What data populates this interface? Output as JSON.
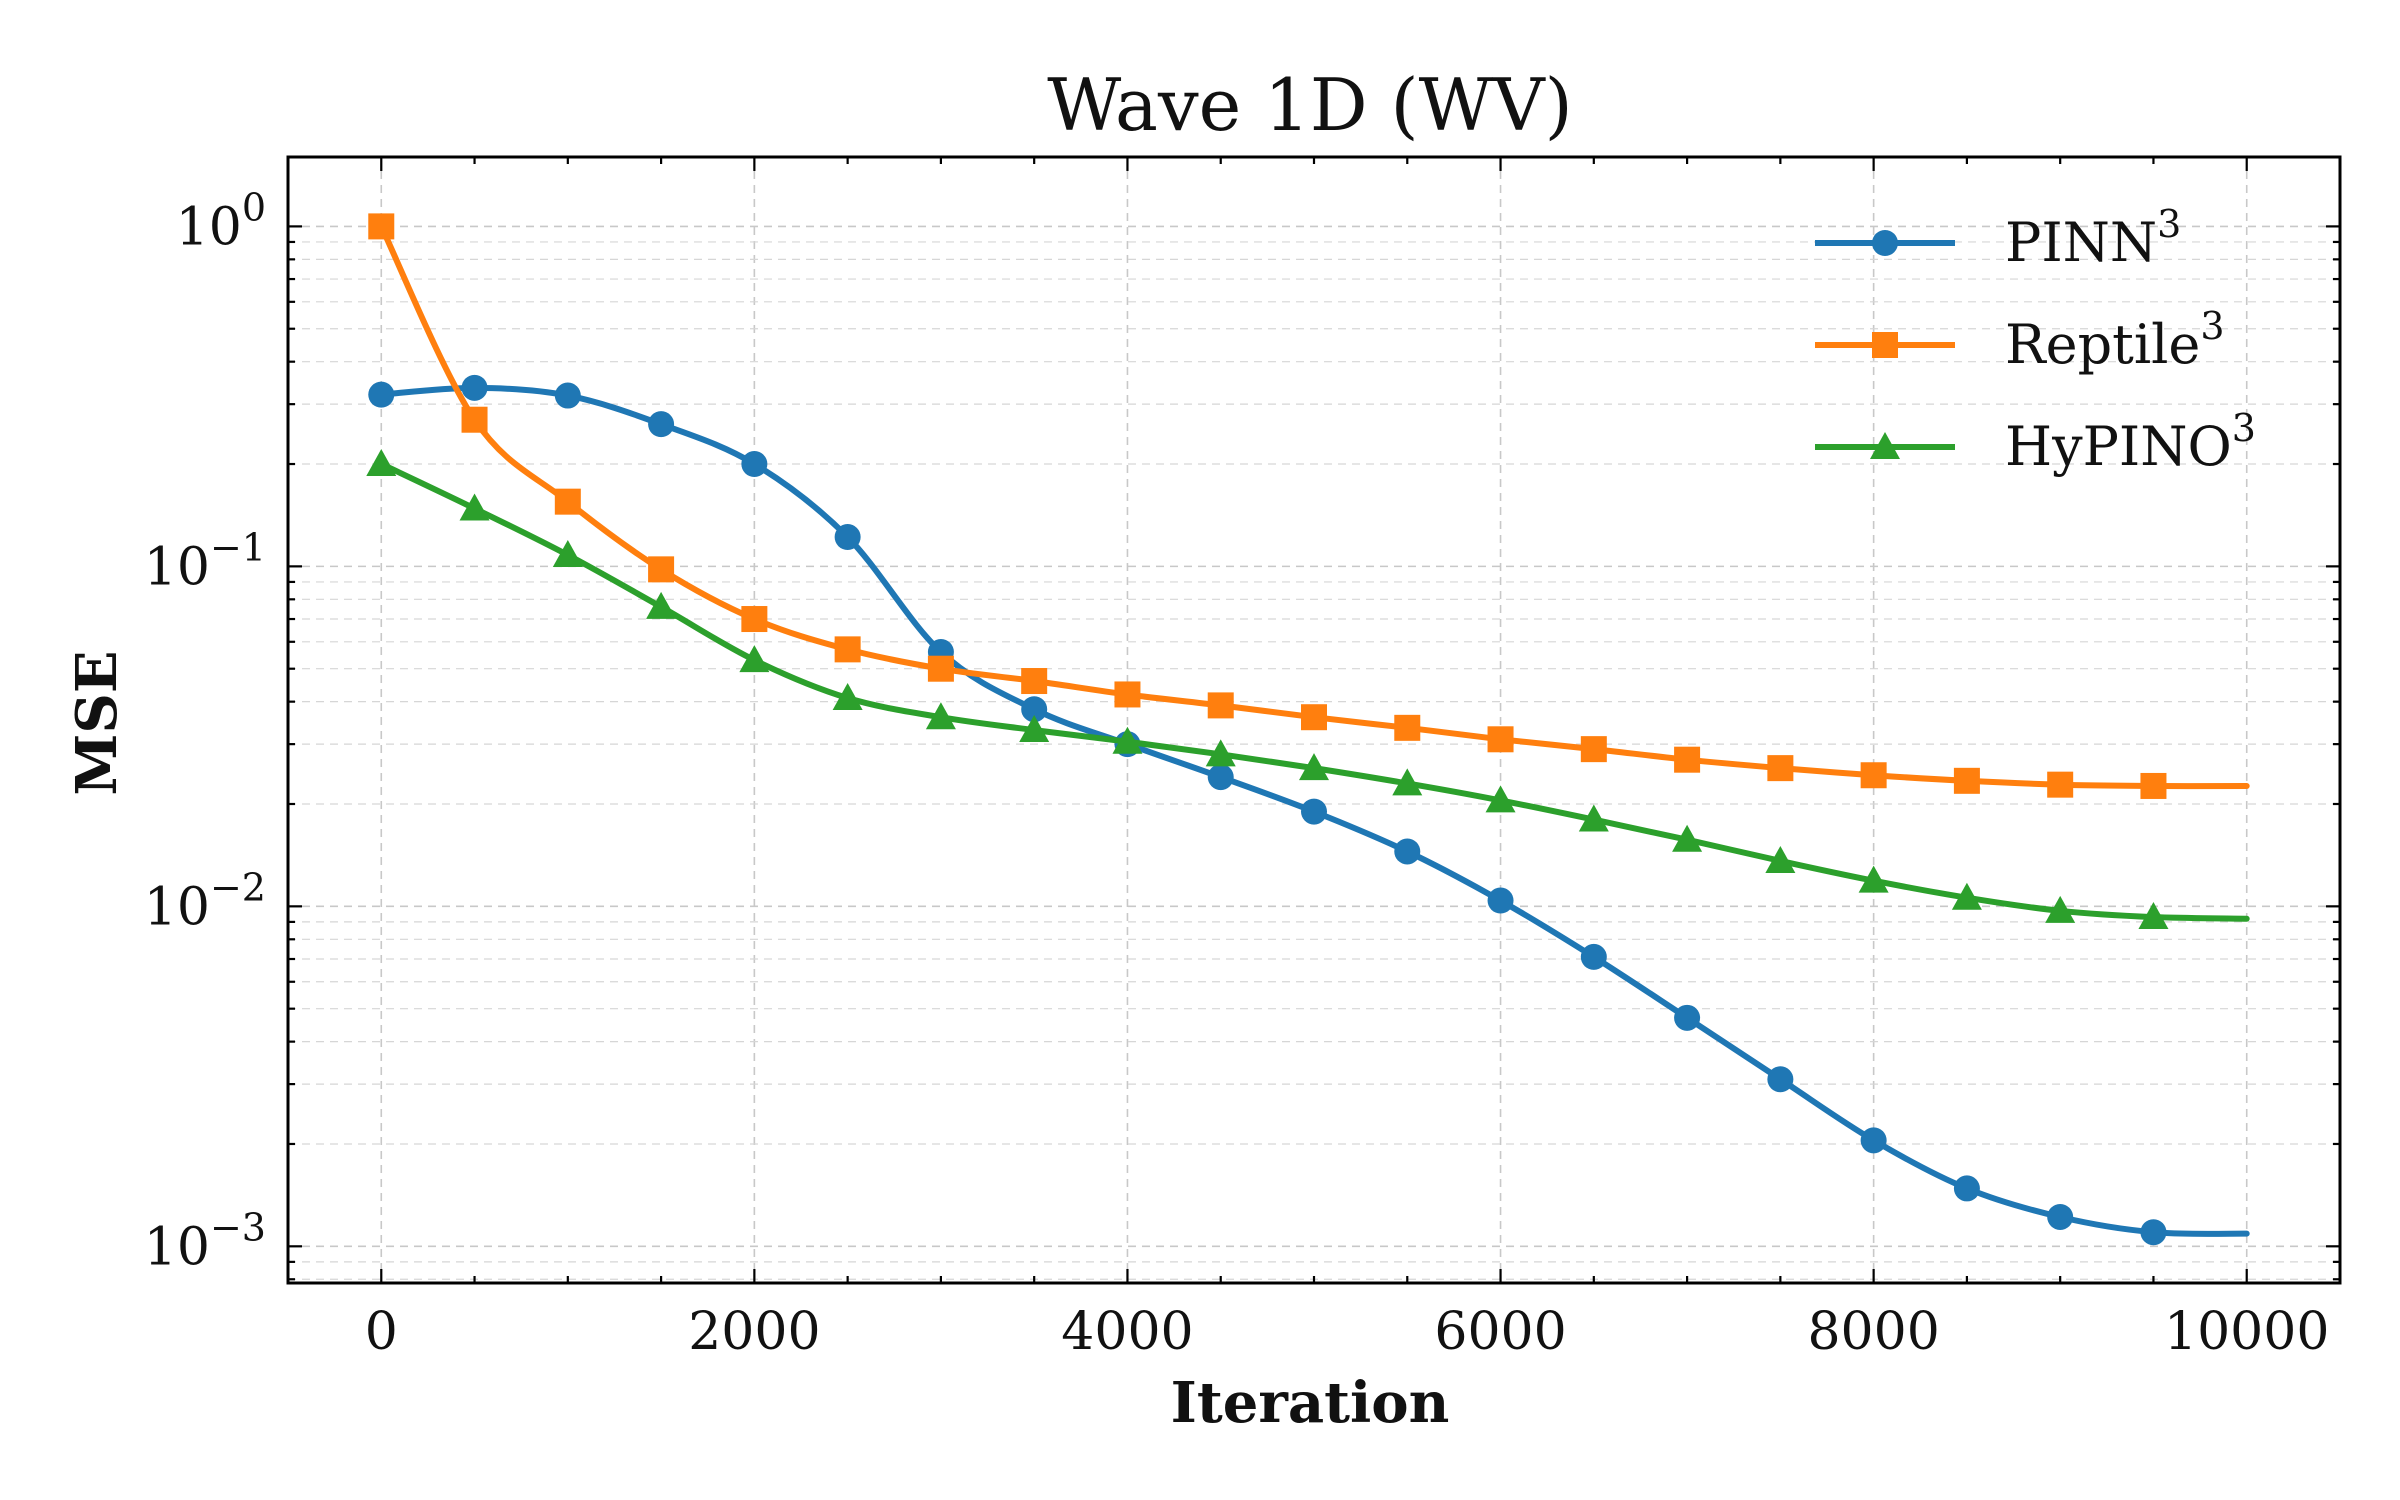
{
  "chart_data": {
    "type": "line",
    "title": "Wave 1D (WV)",
    "xlabel": "Iteration",
    "ylabel": "MSE",
    "xscale": "linear",
    "yscale": "log",
    "xlim": [
      -500,
      10500
    ],
    "ylim": [
      0.00078,
      1.6
    ],
    "xticks": [
      0,
      2000,
      4000,
      6000,
      8000,
      10000
    ],
    "xtick_labels": [
      "0",
      "2000",
      "4000",
      "6000",
      "8000",
      "10000"
    ],
    "ytick_exponents": [
      0,
      -1,
      -2,
      -3
    ],
    "ytick_base": "10",
    "grid": true,
    "legend_position": "top-right",
    "series": [
      {
        "name": "PINN",
        "superscript": "3",
        "color": "#1f77b4",
        "marker": "circle",
        "x": [
          0,
          500,
          1000,
          1500,
          2000,
          2500,
          3000,
          3500,
          4000,
          4500,
          5000,
          5500,
          6000,
          6500,
          7000,
          7500,
          8000,
          8500,
          9000,
          9500
        ],
        "values": [
          0.32,
          0.335,
          0.318,
          0.262,
          0.2,
          0.122,
          0.056,
          0.038,
          0.03,
          0.024,
          0.019,
          0.0145,
          0.0104,
          0.0071,
          0.0047,
          0.0031,
          0.00205,
          0.00148,
          0.00122,
          0.0011
        ],
        "line_end": {
          "x": 10000,
          "y": 0.00109
        }
      },
      {
        "name": "Reptile",
        "superscript": "3",
        "color": "#ff7f0e",
        "marker": "square",
        "x": [
          0,
          500,
          1000,
          1500,
          2000,
          2500,
          3000,
          3500,
          4000,
          4500,
          5000,
          5500,
          6000,
          6500,
          7000,
          7500,
          8000,
          8500,
          9000,
          9500
        ],
        "values": [
          1.0,
          0.27,
          0.155,
          0.098,
          0.07,
          0.057,
          0.05,
          0.046,
          0.042,
          0.039,
          0.036,
          0.0335,
          0.031,
          0.029,
          0.027,
          0.0255,
          0.0243,
          0.0234,
          0.0228,
          0.0226
        ],
        "line_end": {
          "x": 10000,
          "y": 0.0226
        }
      },
      {
        "name": "HyPINO",
        "superscript": "3",
        "color": "#2ca02c",
        "marker": "triangle",
        "x": [
          0,
          500,
          1000,
          1500,
          2000,
          2500,
          3000,
          3500,
          4000,
          4500,
          5000,
          5500,
          6000,
          6500,
          7000,
          7500,
          8000,
          8500,
          9000,
          9500
        ],
        "values": [
          0.2,
          0.148,
          0.108,
          0.076,
          0.053,
          0.041,
          0.036,
          0.033,
          0.0305,
          0.028,
          0.0255,
          0.023,
          0.0205,
          0.018,
          0.0157,
          0.0136,
          0.0119,
          0.0106,
          0.0097,
          0.0093
        ],
        "line_end": {
          "x": 10000,
          "y": 0.0092
        }
      }
    ]
  }
}
